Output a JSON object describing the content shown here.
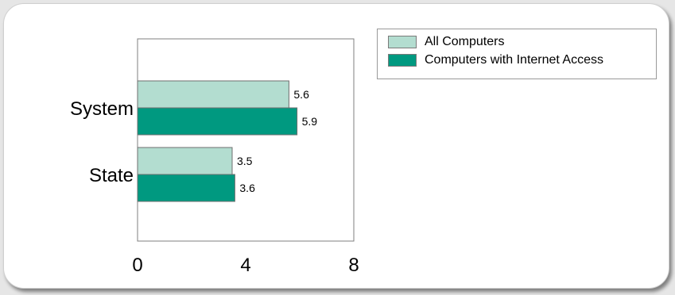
{
  "chart_data": {
    "type": "bar",
    "orientation": "horizontal",
    "categories": [
      "System",
      "State"
    ],
    "series": [
      {
        "name": "All Computers",
        "values": [
          5.6,
          3.5
        ],
        "color": "#b3ddd0"
      },
      {
        "name": "Computers with Internet Access",
        "values": [
          5.9,
          3.6
        ],
        "color": "#009980"
      }
    ],
    "xlim": [
      0,
      8
    ],
    "xticks": [
      0,
      4,
      8
    ],
    "grid": false,
    "legend_position": "top-right",
    "data_labels": true
  }
}
